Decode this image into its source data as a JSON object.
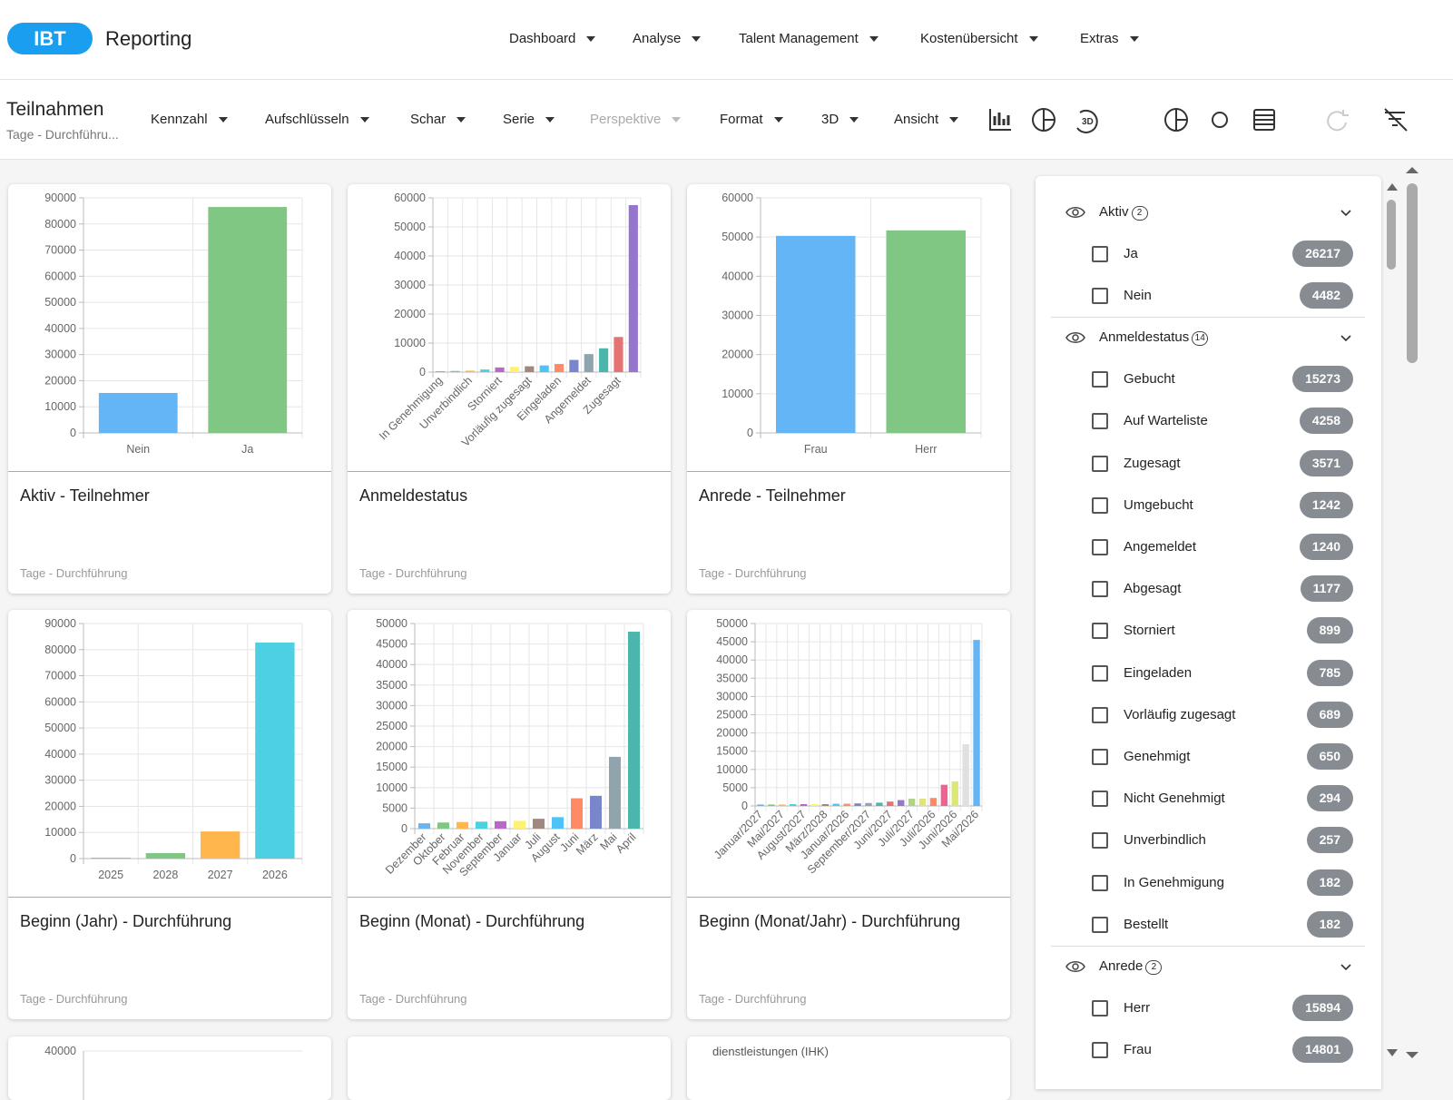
{
  "header": {
    "logo": "IBT",
    "app": "Reporting",
    "nav": [
      "Dashboard",
      "Analyse",
      "Talent Management",
      "Kostenübersicht",
      "Extras"
    ]
  },
  "toolbar": {
    "title": "Teilnahmen",
    "subtitle": "Tage - Durchführu...",
    "menus": [
      {
        "label": "Kennzahl"
      },
      {
        "label": "Aufschlüsseln"
      },
      {
        "label": "Schar"
      },
      {
        "label": "Serie"
      },
      {
        "label": "Perspektive",
        "disabled": true
      },
      {
        "label": "Format"
      },
      {
        "label": "3D"
      },
      {
        "label": "Ansicht"
      }
    ]
  },
  "cards": [
    {
      "title": "Aktiv - Teilnehmer",
      "subtitle": "Tage - Durchführung",
      "chart": {
        "type": "bar",
        "categories": [
          "Nein",
          "Ja"
        ],
        "values": [
          15300,
          86500
        ],
        "colors": [
          "#64b5f6",
          "#81c784"
        ],
        "ylim": [
          0,
          90000
        ],
        "yticks": [
          0,
          10000,
          20000,
          30000,
          40000,
          50000,
          60000,
          70000,
          80000,
          90000
        ],
        "grid": true
      }
    },
    {
      "title": "Anmeldestatus",
      "subtitle": "Tage - Durchführung",
      "chart": {
        "type": "bar",
        "rotate_labels": true,
        "categories": [
          "In Genehmigung",
          null,
          "Unverbindlich",
          null,
          "Storniert",
          null,
          "Vorläufig zugesagt",
          null,
          "Eingeladen",
          null,
          "Angemeldet",
          null,
          "Zugesagt",
          null
        ],
        "values": [
          300,
          400,
          500,
          900,
          1600,
          1800,
          2000,
          2300,
          2800,
          4200,
          6200,
          8200,
          12100,
          57500
        ],
        "colors": [
          "#64b5f6",
          "#81c784",
          "#ffb74d",
          "#4dd0e1",
          "#ba68c8",
          "#fff176",
          "#a1887f",
          "#4fc3f7",
          "#ff8a65",
          "#7986cb",
          "#90a4ae",
          "#4db6ac",
          "#e57373",
          "#9575cd"
        ],
        "ylim": [
          0,
          60000
        ],
        "yticks": [
          0,
          10000,
          20000,
          30000,
          40000,
          50000,
          60000
        ],
        "grid": true
      }
    },
    {
      "title": "Anrede - Teilnehmer",
      "subtitle": "Tage - Durchführung",
      "chart": {
        "type": "bar",
        "categories": [
          "Frau",
          "Herr"
        ],
        "values": [
          50300,
          51700
        ],
        "colors": [
          "#64b5f6",
          "#81c784"
        ],
        "ylim": [
          0,
          60000
        ],
        "yticks": [
          0,
          10000,
          20000,
          30000,
          40000,
          50000,
          60000
        ],
        "grid": true
      }
    },
    {
      "title": "Beginn (Jahr) - Durchführung",
      "subtitle": "Tage - Durchführung",
      "chart": {
        "type": "bar",
        "categories": [
          "2025",
          "2028",
          "2027",
          "2026"
        ],
        "values": [
          300,
          2100,
          10400,
          82700
        ],
        "colors": [
          "#64b5f6",
          "#81c784",
          "#ffb74d",
          "#4dd0e1"
        ],
        "ylim": [
          0,
          90000
        ],
        "yticks": [
          0,
          10000,
          20000,
          30000,
          40000,
          50000,
          60000,
          70000,
          80000,
          90000
        ],
        "grid": true
      }
    },
    {
      "title": "Beginn (Monat) - Durchführung",
      "subtitle": "Tage - Durchführung",
      "chart": {
        "type": "bar",
        "rotate_labels": true,
        "categories": [
          "Dezember",
          "Oktober",
          "Februar",
          "November",
          "September",
          "Januar",
          "Juli",
          "August",
          "Juni",
          "März",
          "Mai",
          "April"
        ],
        "values": [
          1300,
          1500,
          1600,
          1700,
          1800,
          1900,
          2400,
          2800,
          7400,
          8000,
          17500,
          48000
        ],
        "colors": [
          "#64b5f6",
          "#81c784",
          "#ffb74d",
          "#4dd0e1",
          "#ba68c8",
          "#fff176",
          "#a1887f",
          "#4fc3f7",
          "#ff8a65",
          "#7986cb",
          "#90a4ae",
          "#4db6ac"
        ],
        "ylim": [
          0,
          50000
        ],
        "yticks": [
          0,
          5000,
          10000,
          15000,
          20000,
          25000,
          30000,
          35000,
          40000,
          45000,
          50000
        ],
        "grid": true
      }
    },
    {
      "title": "Beginn (Monat/Jahr) - Durchführung",
      "subtitle": "Tage - Durchführung",
      "chart": {
        "type": "bar",
        "rotate_labels": true,
        "categories": [
          "Januar/2027",
          null,
          "Mai/2027",
          null,
          "August/2027",
          null,
          "März/2028",
          null,
          "Januar/2026",
          null,
          "September/2027",
          null,
          "Juni/2027",
          null,
          "Juli/2027",
          null,
          "Juli/2026",
          null,
          "Juni/2026",
          null,
          "Mai/2026"
        ],
        "values": [
          400,
          400,
          400,
          500,
          500,
          500,
          500,
          600,
          600,
          700,
          800,
          900,
          1200,
          1600,
          2000,
          2000,
          2200,
          5800,
          6700,
          16900,
          45500
        ],
        "colors": [
          "#64b5f6",
          "#81c784",
          "#ffb74d",
          "#4dd0e1",
          "#ba68c8",
          "#fff176",
          "#a1887f",
          "#4fc3f7",
          "#ff8a65",
          "#7986cb",
          "#90a4ae",
          "#4db6ac",
          "#e57373",
          "#9575cd",
          "#aed581",
          "#dce775",
          "#ff8a65",
          "#f06292",
          "#dce775",
          "#e0e0e0",
          "#64b5f6"
        ],
        "ylim": [
          0,
          50000
        ],
        "yticks": [
          0,
          5000,
          10000,
          15000,
          20000,
          25000,
          30000,
          35000,
          40000,
          45000,
          50000
        ],
        "grid": true
      }
    }
  ],
  "bottom_row": {
    "ytick": 40000,
    "label": "dienstleistungen (IHK)"
  },
  "filters": [
    {
      "name": "Aktiv",
      "count": 2,
      "items": [
        {
          "label": "Ja",
          "count": 26217
        },
        {
          "label": "Nein",
          "count": 4482
        }
      ]
    },
    {
      "name": "Anmeldestatus",
      "count": 14,
      "items": [
        {
          "label": "Gebucht",
          "count": 15273
        },
        {
          "label": "Auf Warteliste",
          "count": 4258
        },
        {
          "label": "Zugesagt",
          "count": 3571
        },
        {
          "label": "Umgebucht",
          "count": 1242
        },
        {
          "label": "Angemeldet",
          "count": 1240
        },
        {
          "label": "Abgesagt",
          "count": 1177
        },
        {
          "label": "Storniert",
          "count": 899
        },
        {
          "label": "Eingeladen",
          "count": 785
        },
        {
          "label": "Vorläufig zugesagt",
          "count": 689
        },
        {
          "label": "Genehmigt",
          "count": 650
        },
        {
          "label": "Nicht Genehmigt",
          "count": 294
        },
        {
          "label": "Unverbindlich",
          "count": 257
        },
        {
          "label": "In Genehmigung",
          "count": 182
        },
        {
          "label": "Bestellt",
          "count": 182
        }
      ]
    },
    {
      "name": "Anrede",
      "count": 2,
      "items": [
        {
          "label": "Herr",
          "count": 15894
        },
        {
          "label": "Frau",
          "count": 14801
        }
      ]
    }
  ]
}
